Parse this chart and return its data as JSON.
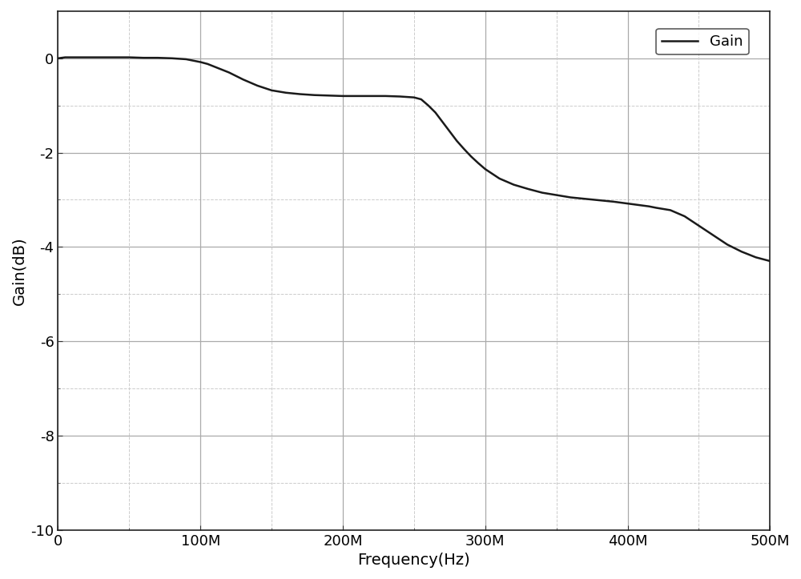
{
  "title": "",
  "xlabel": "Frequency(Hz)",
  "ylabel": "Gain(dB)",
  "xlim": [
    0,
    500000000
  ],
  "ylim": [
    -10,
    1
  ],
  "yticks_major": [
    0,
    -2,
    -4,
    -6,
    -8,
    -10
  ],
  "yticks_minor": [
    -1,
    -3,
    -5,
    -7,
    -9
  ],
  "xtick_labels": [
    "0",
    "100M",
    "200M",
    "300M",
    "400M",
    "500M"
  ],
  "xtick_positions": [
    0,
    100000000,
    200000000,
    300000000,
    400000000,
    500000000
  ],
  "xtick_minor_positions": [
    50000000,
    150000000,
    250000000,
    350000000,
    450000000
  ],
  "line_color": "#1a1a1a",
  "line_width": 1.8,
  "legend_label": "Gain",
  "background_color": "#ffffff",
  "grid_major_color": "#aaaaaa",
  "grid_minor_color": "#cccccc",
  "curve_x": [
    0,
    5000000,
    10000000,
    20000000,
    30000000,
    40000000,
    50000000,
    60000000,
    70000000,
    80000000,
    90000000,
    95000000,
    100000000,
    105000000,
    110000000,
    120000000,
    130000000,
    140000000,
    150000000,
    160000000,
    170000000,
    180000000,
    190000000,
    200000000,
    210000000,
    215000000,
    220000000,
    230000000,
    240000000,
    250000000,
    255000000,
    260000000,
    265000000,
    270000000,
    275000000,
    280000000,
    285000000,
    290000000,
    295000000,
    300000000,
    310000000,
    320000000,
    330000000,
    340000000,
    350000000,
    360000000,
    370000000,
    380000000,
    390000000,
    395000000,
    400000000,
    405000000,
    410000000,
    415000000,
    420000000,
    430000000,
    440000000,
    450000000,
    460000000,
    470000000,
    480000000,
    490000000,
    500000000
  ],
  "curve_y": [
    0.0,
    0.02,
    0.02,
    0.02,
    0.02,
    0.02,
    0.02,
    0.01,
    0.01,
    0.0,
    -0.02,
    -0.05,
    -0.08,
    -0.12,
    -0.18,
    -0.3,
    -0.45,
    -0.58,
    -0.68,
    -0.73,
    -0.76,
    -0.78,
    -0.79,
    -0.8,
    -0.8,
    -0.8,
    -0.8,
    -0.8,
    -0.81,
    -0.83,
    -0.87,
    -1.0,
    -1.15,
    -1.35,
    -1.55,
    -1.75,
    -1.92,
    -2.08,
    -2.22,
    -2.35,
    -2.55,
    -2.68,
    -2.77,
    -2.85,
    -2.9,
    -2.95,
    -2.98,
    -3.01,
    -3.04,
    -3.06,
    -3.08,
    -3.1,
    -3.12,
    -3.14,
    -3.17,
    -3.22,
    -3.35,
    -3.55,
    -3.75,
    -3.95,
    -4.1,
    -4.22,
    -4.3
  ]
}
